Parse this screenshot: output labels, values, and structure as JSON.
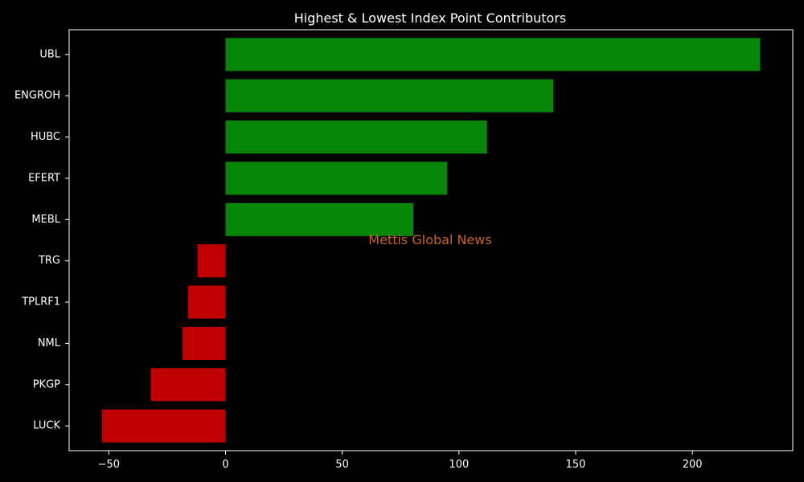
{
  "chart_data": {
    "type": "bar",
    "orientation": "horizontal",
    "title": "Highest & Lowest Index Point Contributors",
    "xlabel": "",
    "ylabel": "",
    "categories": [
      "UBL",
      "ENGROH",
      "HUBC",
      "EFERT",
      "MEBL",
      "TRG",
      "TPLRF1",
      "NML",
      "PKGP",
      "LUCK"
    ],
    "values": [
      229,
      140.5,
      112,
      95,
      80.5,
      -12,
      -16,
      -18.5,
      -32,
      -53
    ],
    "xlim": [
      -67,
      243
    ],
    "xticks": [
      -50,
      0,
      50,
      100,
      150,
      200
    ],
    "xtick_labels": [
      "−50",
      "0",
      "50",
      "100",
      "150",
      "200"
    ],
    "grid": false,
    "legend": "none",
    "colors": {
      "positive": "#078507",
      "negative": "#c00000",
      "background": "#000000",
      "text": "#ffffff",
      "axes": "#ffffff",
      "watermark": "#c8641e"
    },
    "watermark": "Mettis Global News"
  }
}
